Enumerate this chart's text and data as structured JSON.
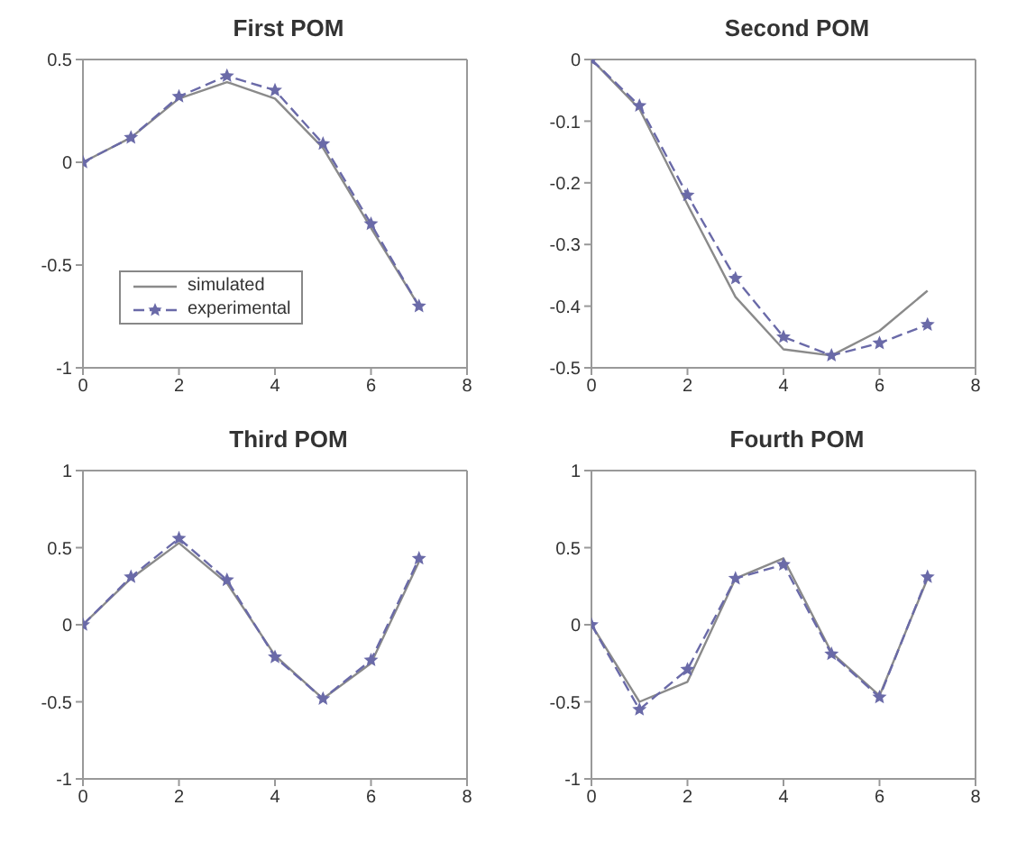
{
  "chart_data": [
    {
      "type": "line",
      "title": "First POM",
      "x": [
        0,
        1,
        2,
        3,
        4,
        5,
        6,
        7
      ],
      "xlim": [
        0,
        8
      ],
      "xticks": [
        0,
        2,
        4,
        6,
        8
      ],
      "ylim": [
        -1,
        0.5
      ],
      "yticks": [
        -1,
        -0.5,
        0,
        0.5
      ],
      "grid": false,
      "legend": "bottom left",
      "series": [
        {
          "name": "simulated",
          "color": "#8a8a8a",
          "marker": "none",
          "line_style": "solid",
          "values": [
            0,
            0.12,
            0.31,
            0.39,
            0.31,
            0.07,
            -0.32,
            -0.7
          ]
        },
        {
          "name": "experimental",
          "color": "#6a6aa8",
          "marker": "star",
          "line_style": "dashed",
          "values": [
            0,
            0.12,
            0.32,
            0.42,
            0.35,
            0.09,
            -0.3,
            -0.7
          ]
        }
      ]
    },
    {
      "type": "line",
      "title": "Second POM",
      "x": [
        0,
        1,
        2,
        3,
        4,
        5,
        6,
        7
      ],
      "xlim": [
        0,
        8
      ],
      "xticks": [
        0,
        2,
        4,
        6,
        8
      ],
      "ylim": [
        -0.5,
        0
      ],
      "yticks": [
        -0.5,
        -0.4,
        -0.3,
        -0.2,
        -0.1,
        0
      ],
      "grid": false,
      "series": [
        {
          "color": "#8a8a8a",
          "marker": "none",
          "line_style": "solid",
          "values": [
            0,
            -0.08,
            -0.235,
            -0.385,
            -0.47,
            -0.48,
            -0.44,
            -0.375
          ]
        },
        {
          "color": "#6a6aa8",
          "marker": "star",
          "line_style": "dashed",
          "values": [
            0,
            -0.075,
            -0.22,
            -0.355,
            -0.45,
            -0.48,
            -0.46,
            -0.43
          ]
        }
      ]
    },
    {
      "type": "line",
      "title": "Third POM",
      "x": [
        0,
        1,
        2,
        3,
        4,
        5,
        6,
        7
      ],
      "xlim": [
        0,
        8
      ],
      "xticks": [
        0,
        2,
        4,
        6,
        8
      ],
      "ylim": [
        -1,
        1
      ],
      "yticks": [
        -1,
        -0.5,
        0,
        0.5,
        1
      ],
      "grid": false,
      "series": [
        {
          "color": "#8a8a8a",
          "marker": "none",
          "line_style": "solid",
          "values": [
            0,
            0.3,
            0.53,
            0.27,
            -0.2,
            -0.48,
            -0.25,
            0.41
          ]
        },
        {
          "color": "#6a6aa8",
          "marker": "star",
          "line_style": "dashed",
          "values": [
            0,
            0.31,
            0.56,
            0.29,
            -0.21,
            -0.48,
            -0.23,
            0.43
          ]
        }
      ]
    },
    {
      "type": "line",
      "title": "Fourth POM",
      "x": [
        0,
        1,
        2,
        3,
        4,
        5,
        6,
        7
      ],
      "xlim": [
        0,
        8
      ],
      "xticks": [
        0,
        2,
        4,
        6,
        8
      ],
      "ylim": [
        -1,
        1
      ],
      "yticks": [
        -1,
        -0.5,
        0,
        0.5,
        1
      ],
      "grid": false,
      "series": [
        {
          "color": "#8a8a8a",
          "marker": "none",
          "line_style": "solid",
          "values": [
            0,
            -0.5,
            -0.37,
            0.3,
            0.43,
            -0.18,
            -0.46,
            0.3
          ]
        },
        {
          "color": "#6a6aa8",
          "marker": "star",
          "line_style": "dashed",
          "values": [
            0,
            -0.55,
            -0.29,
            0.3,
            0.39,
            -0.19,
            -0.47,
            0.31
          ]
        }
      ]
    }
  ]
}
